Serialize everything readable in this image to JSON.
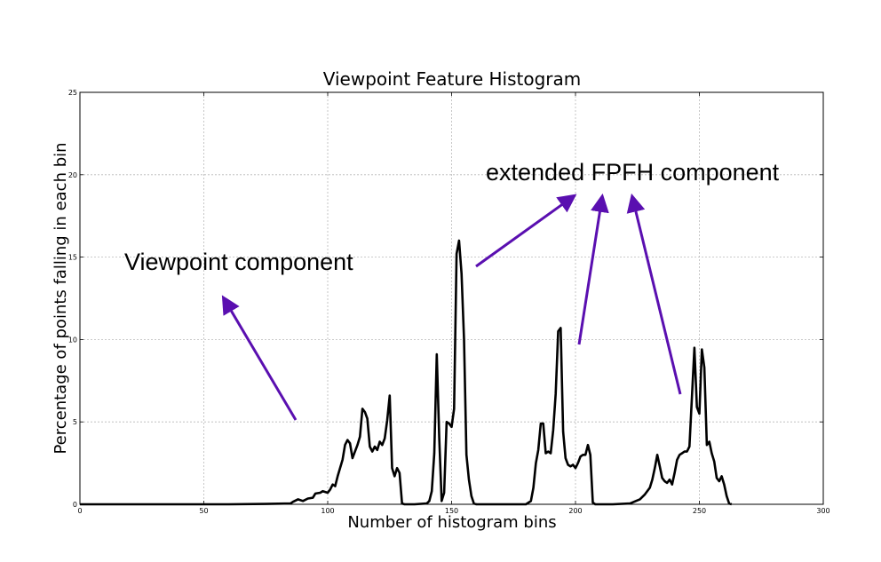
{
  "chart_data": {
    "type": "line",
    "title": "Viewpoint Feature Histogram",
    "xlabel": "Number of histogram bins",
    "ylabel": "Percentage of points falling in each bin",
    "xlim": [
      0,
      300
    ],
    "ylim": [
      0,
      25
    ],
    "xticks": [
      0,
      50,
      100,
      150,
      200,
      250,
      300
    ],
    "yticks": [
      0,
      5,
      10,
      15,
      20,
      25
    ],
    "grid": true,
    "series": [
      {
        "line_color": "#000000",
        "x": [
          0,
          60,
          75,
          85,
          86,
          88,
          90,
          92,
          94,
          95,
          97,
          98,
          100,
          101,
          102,
          103,
          104,
          105,
          106,
          107,
          108,
          109,
          110,
          111,
          112,
          113,
          114,
          115,
          116,
          117,
          118,
          119,
          120,
          121,
          122,
          123,
          124,
          125,
          126,
          127,
          128,
          129,
          130,
          131,
          133,
          135,
          140,
          141,
          142,
          143,
          144,
          145,
          146,
          147,
          148,
          149,
          150,
          151,
          152,
          153,
          154,
          155,
          156,
          157,
          158,
          159,
          160,
          161,
          162,
          163,
          165,
          170,
          180,
          182,
          183,
          184,
          185,
          186,
          187,
          188,
          189,
          190,
          191,
          192,
          193,
          194,
          195,
          196,
          197,
          198,
          199,
          200,
          201,
          202,
          203,
          204,
          205,
          206,
          207,
          208,
          209,
          210,
          215,
          222,
          226,
          228,
          230,
          231,
          232,
          233,
          234,
          235,
          236,
          237,
          238,
          239,
          240,
          241,
          242,
          243,
          244,
          245,
          246,
          247,
          248,
          249,
          250,
          251,
          252,
          253,
          254,
          255,
          256,
          257,
          258,
          259,
          260,
          261,
          262,
          263
        ],
        "values": [
          0,
          0,
          0.02,
          0.05,
          0.15,
          0.3,
          0.2,
          0.35,
          0.4,
          0.65,
          0.7,
          0.8,
          0.7,
          0.9,
          1.2,
          1.1,
          1.7,
          2.2,
          2.7,
          3.6,
          3.9,
          3.7,
          2.8,
          3.2,
          3.6,
          4.1,
          5.8,
          5.6,
          5.2,
          3.5,
          3.2,
          3.5,
          3.3,
          3.8,
          3.6,
          4.0,
          5.1,
          6.6,
          2.2,
          1.7,
          2.2,
          1.9,
          0.05,
          0,
          0,
          0,
          0.05,
          0.2,
          0.8,
          3.1,
          9.1,
          4.0,
          0.2,
          0.7,
          5.0,
          4.9,
          4.7,
          5.8,
          15.2,
          16.0,
          14.0,
          10.0,
          3.0,
          1.5,
          0.5,
          0.05,
          0,
          0,
          0,
          0,
          0,
          0,
          0,
          0.2,
          1.0,
          2.5,
          3.3,
          4.9,
          4.9,
          3.1,
          3.2,
          3.1,
          4.5,
          6.7,
          10.5,
          10.7,
          4.4,
          2.8,
          2.4,
          2.3,
          2.4,
          2.2,
          2.5,
          2.9,
          3.0,
          3.0,
          3.6,
          3.0,
          0.1,
          0,
          0,
          0,
          0,
          0.05,
          0.3,
          0.6,
          1.0,
          1.5,
          2.2,
          3.0,
          2.3,
          1.6,
          1.4,
          1.3,
          1.5,
          1.2,
          1.9,
          2.7,
          3.0,
          3.1,
          3.2,
          3.2,
          3.5,
          6.5,
          9.5,
          5.9,
          5.5,
          9.4,
          8.3,
          3.6,
          3.8,
          3.1,
          2.6,
          1.6,
          1.4,
          1.7,
          1.2,
          0.5,
          0.05,
          0
        ]
      }
    ],
    "annotations": [
      {
        "text": "Viewpoint component",
        "arrow_color": "#5a0fb0"
      },
      {
        "text": "extended FPFH component",
        "arrow_color": "#5a0fb0"
      }
    ]
  }
}
